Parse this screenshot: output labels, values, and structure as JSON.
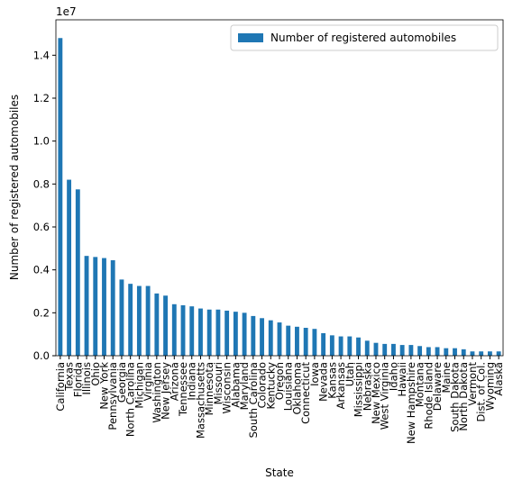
{
  "chart_data": {
    "type": "bar",
    "x_label": "State",
    "y_label": "Number of registered automobiles",
    "y_offset_label": "1e7",
    "legend_loc": "upper right",
    "series": [
      {
        "name": "Number of registered automobiles",
        "color": "#1f77b4",
        "values": [
          1.48,
          0.82,
          0.775,
          0.465,
          0.46,
          0.455,
          0.445,
          0.355,
          0.335,
          0.325,
          0.325,
          0.29,
          0.28,
          0.24,
          0.235,
          0.23,
          0.22,
          0.215,
          0.215,
          0.21,
          0.205,
          0.2,
          0.185,
          0.175,
          0.165,
          0.155,
          0.14,
          0.135,
          0.13,
          0.125,
          0.105,
          0.095,
          0.09,
          0.09,
          0.085,
          0.07,
          0.06,
          0.055,
          0.055,
          0.05,
          0.05,
          0.045,
          0.04,
          0.04,
          0.035,
          0.035,
          0.03,
          0.02,
          0.02,
          0.02,
          0.02
        ]
      }
    ],
    "categories": [
      "California",
      "Texas",
      "Florida",
      "Illinois",
      "Ohio",
      "New York",
      "Pennsylvania",
      "Georgia",
      "North Carolina",
      "Michigan",
      "Virginia",
      "Washington",
      "New Jersey",
      "Arizona",
      "Tennessee",
      "Indiana",
      "Massachusetts",
      "Minnesota",
      "Missouri",
      "Wisconsin",
      "Alabama",
      "Maryland",
      "South Carolina",
      "Colorado",
      "Kentucky",
      "Oregon",
      "Louisiana",
      "Oklahoma",
      "Connecticut",
      "Iowa",
      "Nevada",
      "Kansas",
      "Arkansas",
      "Utah",
      "Mississippi",
      "Nebraska",
      "New Mexico",
      "West Virginia",
      "Idaho",
      "Hawaii",
      "New Hampshire",
      "Montana",
      "Rhode Island",
      "Delaware",
      "Maine",
      "South Dakota",
      "North Dakota",
      "Vermont",
      "Dist. of Col.",
      "Wyoming",
      "Alaska"
    ],
    "ylim": [
      0,
      1.565
    ],
    "yticks": [
      {
        "value": 0,
        "label": "0.0"
      },
      {
        "value": 0.2,
        "label": "0.2"
      },
      {
        "value": 0.4,
        "label": "0.4"
      },
      {
        "value": 0.6,
        "label": "0.6"
      },
      {
        "value": 0.8,
        "label": "0.8"
      },
      {
        "value": 1.0,
        "label": "1.0"
      },
      {
        "value": 1.2,
        "label": "1.2"
      },
      {
        "value": 1.4,
        "label": "1.4"
      }
    ]
  }
}
